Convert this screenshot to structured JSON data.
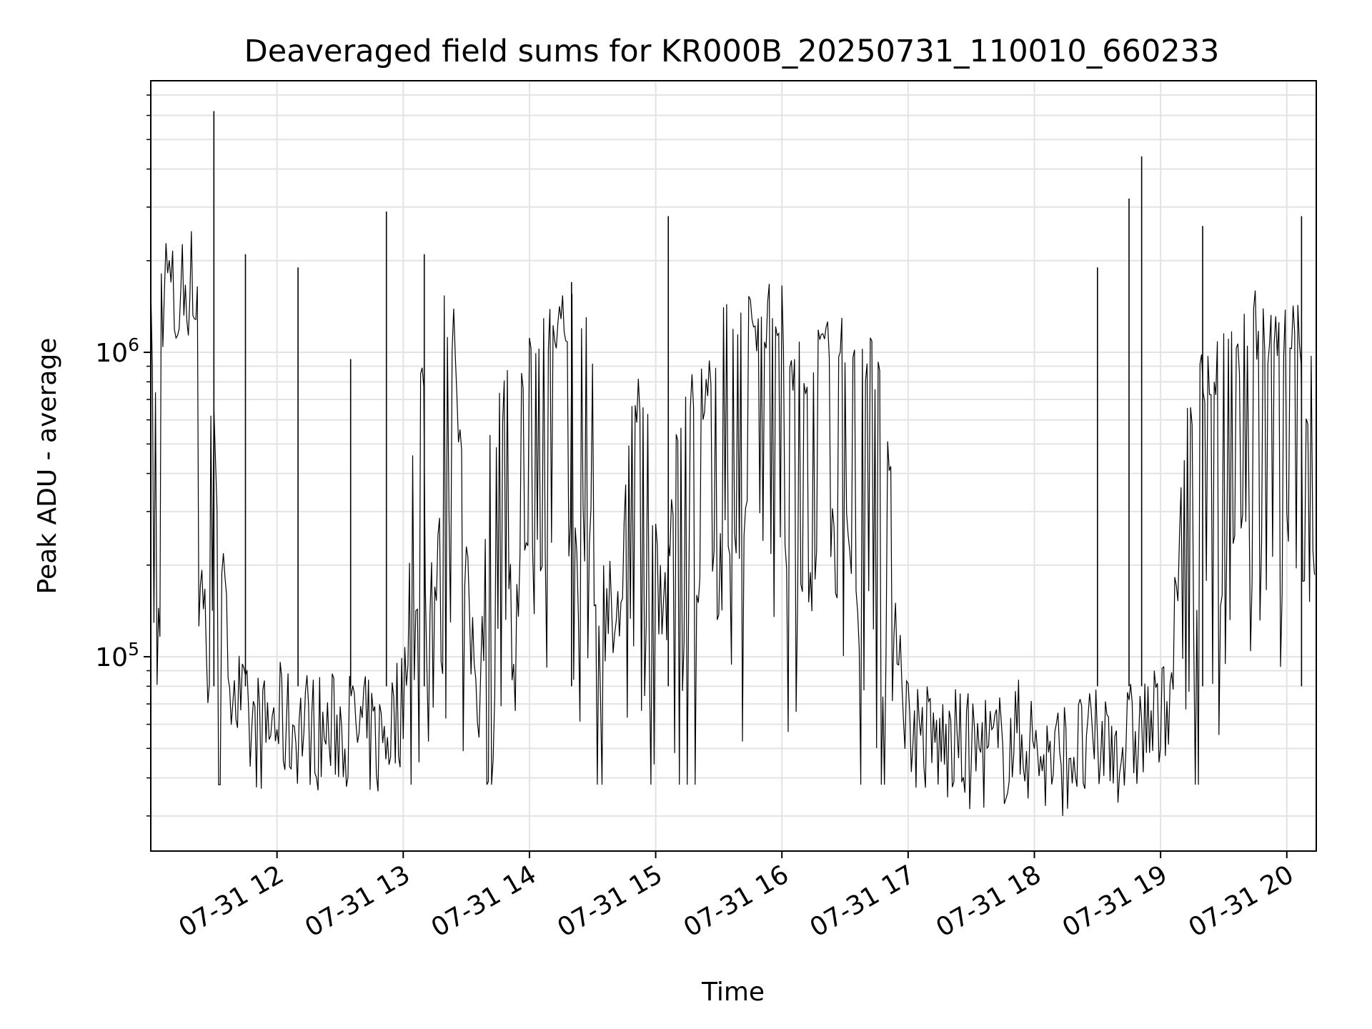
{
  "chart_data": {
    "type": "line",
    "title": "Deaveraged field sums for KR000B_20250731_110010_660233",
    "xlabel": "Time",
    "ylabel": "Peak ADU - average",
    "yscale": "log",
    "ylim": [
      23000,
      7800000
    ],
    "xlim": [
      "2025-07-31 11:00",
      "2025-07-31 20:14"
    ],
    "grid": true,
    "line_color": "#000000",
    "x_ticks": [
      {
        "x": "2025-07-31 12:00",
        "label": "07-31 12"
      },
      {
        "x": "2025-07-31 13:00",
        "label": "07-31 13"
      },
      {
        "x": "2025-07-31 14:00",
        "label": "07-31 14"
      },
      {
        "x": "2025-07-31 15:00",
        "label": "07-31 15"
      },
      {
        "x": "2025-07-31 16:00",
        "label": "07-31 16"
      },
      {
        "x": "2025-07-31 17:00",
        "label": "07-31 17"
      },
      {
        "x": "2025-07-31 18:00",
        "label": "07-31 18"
      },
      {
        "x": "2025-07-31 19:00",
        "label": "07-31 19"
      },
      {
        "x": "2025-07-31 20:00",
        "label": "07-31 20"
      }
    ],
    "y_ticks": [
      {
        "value": 100000,
        "base": "10",
        "exp": "5"
      },
      {
        "value": 1000000,
        "base": "10",
        "exp": "6"
      }
    ],
    "series": [
      {
        "x": [
          "2025-07-31 11:00",
          "2025-07-31 11:03",
          "2025-07-31 11:05",
          "2025-07-31 11:08",
          "2025-07-31 11:12",
          "2025-07-31 11:15",
          "2025-07-31 11:20",
          "2025-07-31 11:25",
          "2025-07-31 11:30",
          "2025-07-31 11:33",
          "2025-07-31 11:36",
          "2025-07-31 11:39",
          "2025-07-31 11:42",
          "2025-07-31 11:45",
          "2025-07-31 11:48",
          "2025-07-31 11:51",
          "2025-07-31 11:54",
          "2025-07-31 11:57",
          "2025-07-31 12:00",
          "2025-07-31 12:06",
          "2025-07-31 12:12",
          "2025-07-31 12:18",
          "2025-07-31 12:24",
          "2025-07-31 12:30",
          "2025-07-31 12:36",
          "2025-07-31 12:42",
          "2025-07-31 12:48",
          "2025-07-31 12:54",
          "2025-07-31 13:00",
          "2025-07-31 13:06",
          "2025-07-31 13:12",
          "2025-07-31 13:18",
          "2025-07-31 13:24",
          "2025-07-31 13:30",
          "2025-07-31 13:36",
          "2025-07-31 13:42",
          "2025-07-31 13:48",
          "2025-07-31 13:54",
          "2025-07-31 14:00",
          "2025-07-31 14:06",
          "2025-07-31 14:12",
          "2025-07-31 14:18",
          "2025-07-31 14:24",
          "2025-07-31 14:30",
          "2025-07-31 14:36",
          "2025-07-31 14:42",
          "2025-07-31 14:48",
          "2025-07-31 14:54",
          "2025-07-31 15:00",
          "2025-07-31 15:06",
          "2025-07-31 15:12",
          "2025-07-31 15:18",
          "2025-07-31 15:24",
          "2025-07-31 15:30",
          "2025-07-31 15:36",
          "2025-07-31 15:42",
          "2025-07-31 15:48",
          "2025-07-31 15:54",
          "2025-07-31 16:00",
          "2025-07-31 16:06",
          "2025-07-31 16:12",
          "2025-07-31 16:18",
          "2025-07-31 16:24",
          "2025-07-31 16:30",
          "2025-07-31 16:36",
          "2025-07-31 16:42",
          "2025-07-31 16:48",
          "2025-07-31 16:54",
          "2025-07-31 17:00",
          "2025-07-31 17:06",
          "2025-07-31 17:12",
          "2025-07-31 17:18",
          "2025-07-31 17:24",
          "2025-07-31 17:30",
          "2025-07-31 17:36",
          "2025-07-31 17:42",
          "2025-07-31 17:48",
          "2025-07-31 17:54",
          "2025-07-31 18:00",
          "2025-07-31 18:06",
          "2025-07-31 18:12",
          "2025-07-31 18:18",
          "2025-07-31 18:24",
          "2025-07-31 18:30",
          "2025-07-31 18:36",
          "2025-07-31 18:42",
          "2025-07-31 18:48",
          "2025-07-31 18:54",
          "2025-07-31 19:00",
          "2025-07-31 19:06",
          "2025-07-31 19:12",
          "2025-07-31 19:18",
          "2025-07-31 19:24",
          "2025-07-31 19:30",
          "2025-07-31 19:36",
          "2025-07-31 19:42",
          "2025-07-31 19:48",
          "2025-07-31 19:54",
          "2025-07-31 20:00",
          "2025-07-31 20:06",
          "2025-07-31 20:10",
          "2025-07-31 20:14"
        ],
        "y": [
          1000000,
          380000,
          1500000,
          1800000,
          1300000,
          1600000,
          1800000,
          700000,
          420000,
          200000,
          110000,
          90000,
          70000,
          60000,
          55000,
          58000,
          55000,
          60000,
          62000,
          58000,
          60000,
          58000,
          55000,
          60000,
          58000,
          55000,
          52000,
          60000,
          70000,
          500000,
          800000,
          900000,
          1000000,
          150000,
          80000,
          400000,
          500000,
          700000,
          800000,
          900000,
          1000000,
          950000,
          1000000,
          900000,
          150000,
          120000,
          400000,
          600000,
          200000,
          150000,
          500000,
          600000,
          600000,
          800000,
          900000,
          1000000,
          1000000,
          1000000,
          1000000,
          700000,
          600000,
          800000,
          1000000,
          900000,
          700000,
          700000,
          600000,
          150000,
          60000,
          55000,
          52000,
          50000,
          50000,
          48000,
          50000,
          48000,
          52000,
          55000,
          50000,
          45000,
          45000,
          50000,
          48000,
          50000,
          55000,
          50000,
          55000,
          60000,
          58000,
          100000,
          400000,
          600000,
          600000,
          700000,
          800000,
          1000000,
          900000,
          900000,
          900000,
          900000,
          500000,
          800000
        ]
      }
    ],
    "spikes": {
      "x": [
        "2025-07-31 11:30",
        "2025-07-31 12:52",
        "2025-07-31 15:06",
        "2025-07-31 18:51",
        "2025-07-31 18:45",
        "2025-07-31 19:20",
        "2025-07-31 20:07",
        "2025-07-31 13:10",
        "2025-07-31 12:10",
        "2025-07-31 12:35",
        "2025-07-31 11:45",
        "2025-07-31 14:20",
        "2025-07-31 18:30"
      ],
      "y": [
        6200000,
        2900000,
        2800000,
        4400000,
        3200000,
        2600000,
        2800000,
        2100000,
        1900000,
        950000,
        2100000,
        1700000,
        1900000
      ]
    }
  }
}
